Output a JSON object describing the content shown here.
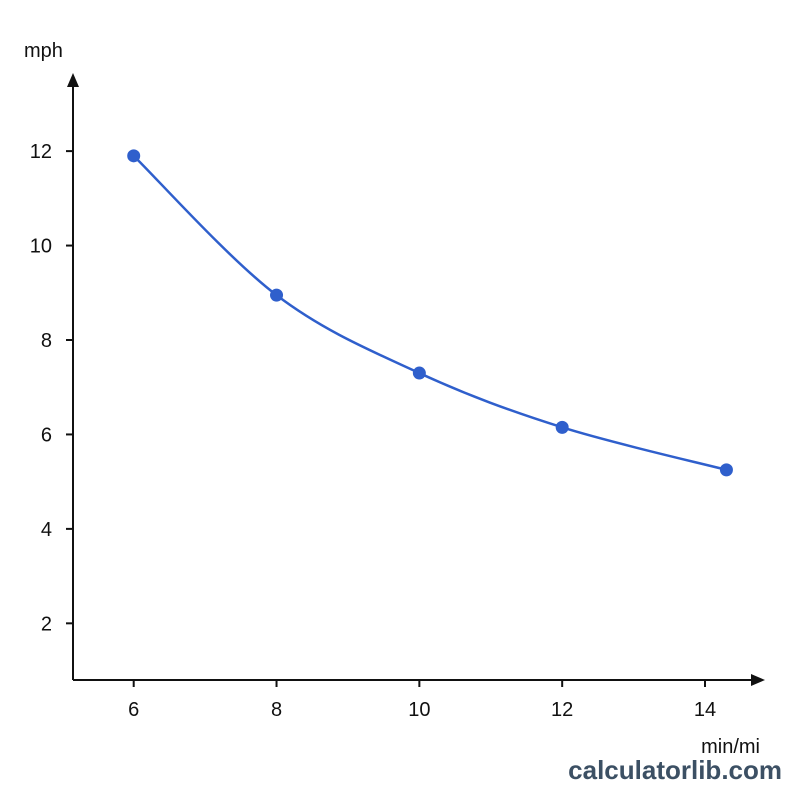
{
  "chart_data": {
    "type": "line",
    "xlabel": "min/mi",
    "ylabel": "mph",
    "x_ticks": [
      6,
      8,
      10,
      12,
      14
    ],
    "y_ticks": [
      2,
      4,
      6,
      8,
      10,
      12
    ],
    "xlim": [
      5.15,
      14.7
    ],
    "ylim": [
      0.8,
      13.4
    ],
    "series": [
      {
        "x": [
          6,
          8,
          10,
          12,
          14.3
        ],
        "y": [
          11.9,
          8.95,
          7.3,
          6.15,
          5.25
        ]
      }
    ],
    "colors": {
      "line": "#2f5fcc",
      "point": "#2f5fcc",
      "axis": "#111111"
    }
  },
  "watermark": "calculatorlib.com"
}
